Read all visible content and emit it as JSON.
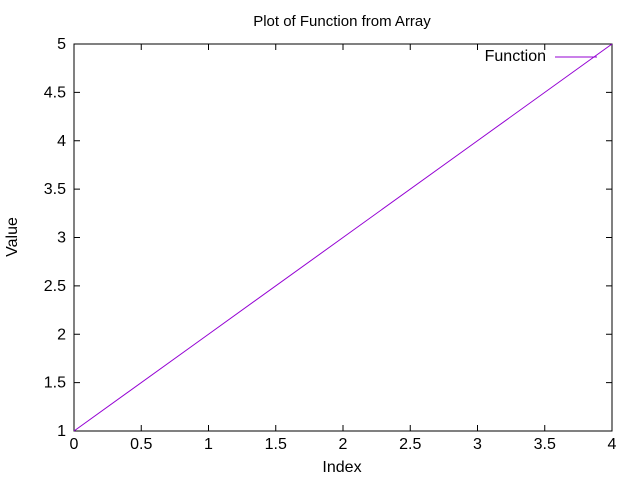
{
  "chart_data": {
    "type": "line",
    "title": "Plot of Function from Array",
    "xlabel": "Index",
    "ylabel": "Value",
    "xlim": [
      0,
      4
    ],
    "ylim": [
      1,
      5
    ],
    "x_ticks": [
      0,
      0.5,
      1,
      1.5,
      2,
      2.5,
      3,
      3.5,
      4
    ],
    "x_tick_labels": [
      "0",
      "0.5",
      "1",
      "1.5",
      "2",
      "2.5",
      "3",
      "3.5",
      "4"
    ],
    "y_ticks": [
      1,
      1.5,
      2,
      2.5,
      3,
      3.5,
      4,
      4.5,
      5
    ],
    "y_tick_labels": [
      "1",
      "1.5",
      "2",
      "2.5",
      "3",
      "3.5",
      "4",
      "4.5",
      "5"
    ],
    "grid": false,
    "legend_position": "top-right",
    "series": [
      {
        "name": "Function",
        "color": "#9400d3",
        "x": [
          0,
          1,
          2,
          3,
          4
        ],
        "y": [
          1,
          2,
          3,
          4,
          5
        ]
      }
    ]
  }
}
